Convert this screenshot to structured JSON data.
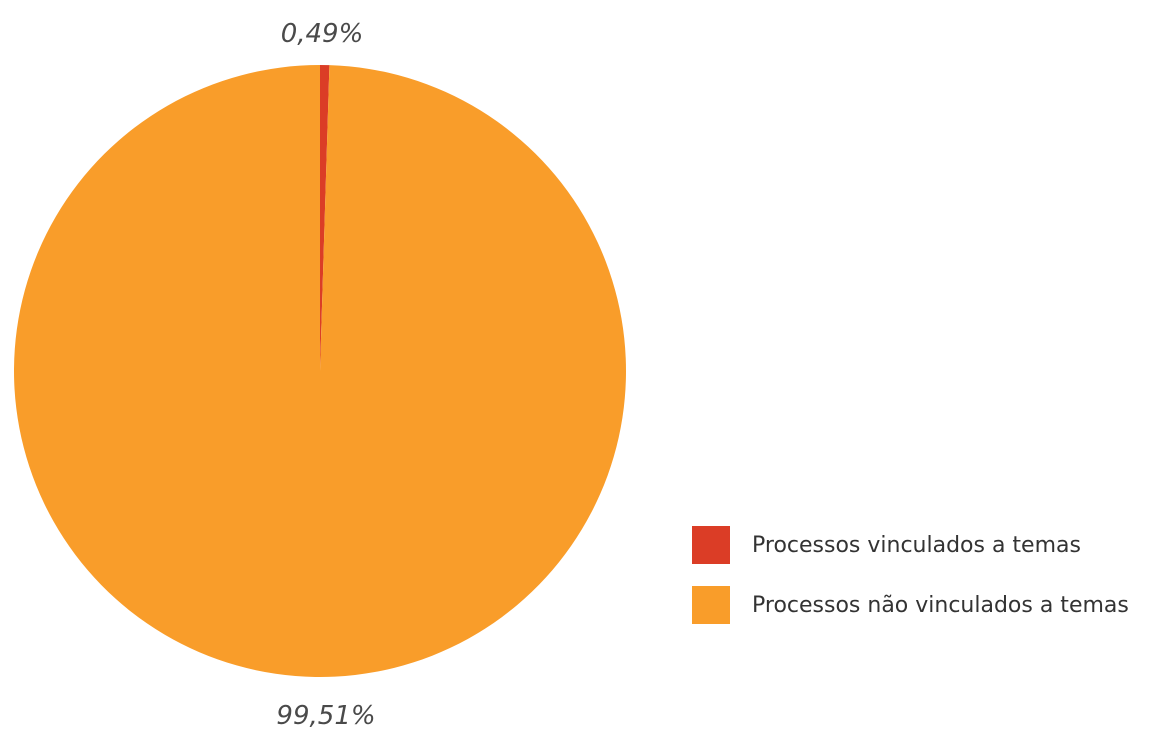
{
  "chart_data": {
    "type": "pie",
    "categories": [
      "Processos vinculados a temas",
      "Processos não vinculados a temas"
    ],
    "values": [
      0.49,
      99.51
    ],
    "value_labels": [
      "0,49%",
      "99,51%"
    ],
    "colors": [
      "#DB3D26",
      "#F99D2A"
    ],
    "legend_position": "bottom-right",
    "title": ""
  }
}
